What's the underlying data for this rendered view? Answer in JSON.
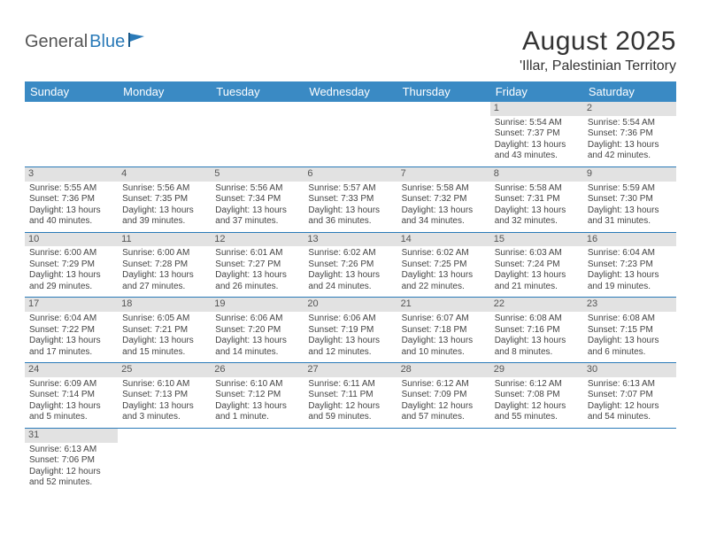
{
  "logo": {
    "part1": "General",
    "part2": "Blue"
  },
  "title": "August 2025",
  "location": "'Illar, Palestinian Territory",
  "colors": {
    "header_bg": "#3a8ac4",
    "header_text": "#ffffff",
    "daynum_bg": "#e2e2e2",
    "cell_border": "#2a7ab8",
    "logo_blue": "#2a7ab8",
    "body_text": "#444444"
  },
  "columns": [
    "Sunday",
    "Monday",
    "Tuesday",
    "Wednesday",
    "Thursday",
    "Friday",
    "Saturday"
  ],
  "weeks": [
    [
      null,
      null,
      null,
      null,
      null,
      {
        "n": "1",
        "sr": "5:54 AM",
        "ss": "7:37 PM",
        "dl": "13 hours and 43 minutes."
      },
      {
        "n": "2",
        "sr": "5:54 AM",
        "ss": "7:36 PM",
        "dl": "13 hours and 42 minutes."
      }
    ],
    [
      {
        "n": "3",
        "sr": "5:55 AM",
        "ss": "7:36 PM",
        "dl": "13 hours and 40 minutes."
      },
      {
        "n": "4",
        "sr": "5:56 AM",
        "ss": "7:35 PM",
        "dl": "13 hours and 39 minutes."
      },
      {
        "n": "5",
        "sr": "5:56 AM",
        "ss": "7:34 PM",
        "dl": "13 hours and 37 minutes."
      },
      {
        "n": "6",
        "sr": "5:57 AM",
        "ss": "7:33 PM",
        "dl": "13 hours and 36 minutes."
      },
      {
        "n": "7",
        "sr": "5:58 AM",
        "ss": "7:32 PM",
        "dl": "13 hours and 34 minutes."
      },
      {
        "n": "8",
        "sr": "5:58 AM",
        "ss": "7:31 PM",
        "dl": "13 hours and 32 minutes."
      },
      {
        "n": "9",
        "sr": "5:59 AM",
        "ss": "7:30 PM",
        "dl": "13 hours and 31 minutes."
      }
    ],
    [
      {
        "n": "10",
        "sr": "6:00 AM",
        "ss": "7:29 PM",
        "dl": "13 hours and 29 minutes."
      },
      {
        "n": "11",
        "sr": "6:00 AM",
        "ss": "7:28 PM",
        "dl": "13 hours and 27 minutes."
      },
      {
        "n": "12",
        "sr": "6:01 AM",
        "ss": "7:27 PM",
        "dl": "13 hours and 26 minutes."
      },
      {
        "n": "13",
        "sr": "6:02 AM",
        "ss": "7:26 PM",
        "dl": "13 hours and 24 minutes."
      },
      {
        "n": "14",
        "sr": "6:02 AM",
        "ss": "7:25 PM",
        "dl": "13 hours and 22 minutes."
      },
      {
        "n": "15",
        "sr": "6:03 AM",
        "ss": "7:24 PM",
        "dl": "13 hours and 21 minutes."
      },
      {
        "n": "16",
        "sr": "6:04 AM",
        "ss": "7:23 PM",
        "dl": "13 hours and 19 minutes."
      }
    ],
    [
      {
        "n": "17",
        "sr": "6:04 AM",
        "ss": "7:22 PM",
        "dl": "13 hours and 17 minutes."
      },
      {
        "n": "18",
        "sr": "6:05 AM",
        "ss": "7:21 PM",
        "dl": "13 hours and 15 minutes."
      },
      {
        "n": "19",
        "sr": "6:06 AM",
        "ss": "7:20 PM",
        "dl": "13 hours and 14 minutes."
      },
      {
        "n": "20",
        "sr": "6:06 AM",
        "ss": "7:19 PM",
        "dl": "13 hours and 12 minutes."
      },
      {
        "n": "21",
        "sr": "6:07 AM",
        "ss": "7:18 PM",
        "dl": "13 hours and 10 minutes."
      },
      {
        "n": "22",
        "sr": "6:08 AM",
        "ss": "7:16 PM",
        "dl": "13 hours and 8 minutes."
      },
      {
        "n": "23",
        "sr": "6:08 AM",
        "ss": "7:15 PM",
        "dl": "13 hours and 6 minutes."
      }
    ],
    [
      {
        "n": "24",
        "sr": "6:09 AM",
        "ss": "7:14 PM",
        "dl": "13 hours and 5 minutes."
      },
      {
        "n": "25",
        "sr": "6:10 AM",
        "ss": "7:13 PM",
        "dl": "13 hours and 3 minutes."
      },
      {
        "n": "26",
        "sr": "6:10 AM",
        "ss": "7:12 PM",
        "dl": "13 hours and 1 minute."
      },
      {
        "n": "27",
        "sr": "6:11 AM",
        "ss": "7:11 PM",
        "dl": "12 hours and 59 minutes."
      },
      {
        "n": "28",
        "sr": "6:12 AM",
        "ss": "7:09 PM",
        "dl": "12 hours and 57 minutes."
      },
      {
        "n": "29",
        "sr": "6:12 AM",
        "ss": "7:08 PM",
        "dl": "12 hours and 55 minutes."
      },
      {
        "n": "30",
        "sr": "6:13 AM",
        "ss": "7:07 PM",
        "dl": "12 hours and 54 minutes."
      }
    ],
    [
      {
        "n": "31",
        "sr": "6:13 AM",
        "ss": "7:06 PM",
        "dl": "12 hours and 52 minutes."
      },
      null,
      null,
      null,
      null,
      null,
      null
    ]
  ],
  "labels": {
    "sunrise": "Sunrise:",
    "sunset": "Sunset:",
    "daylight": "Daylight:"
  }
}
